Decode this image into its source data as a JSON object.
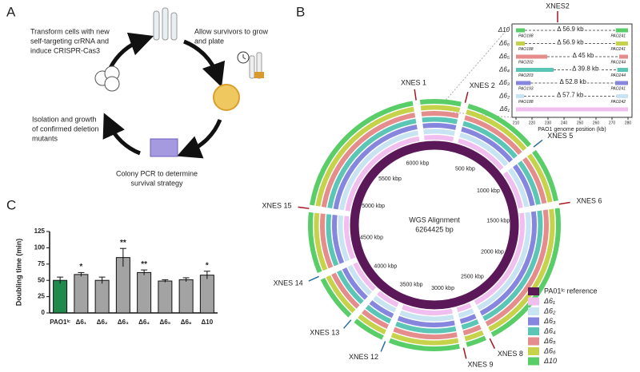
{
  "panel_a": {
    "label": "A",
    "steps": [
      [
        "Transform cells with new",
        "self-targeting crRNA and",
        "induce CRISPR-Cas3"
      ],
      [
        "Allow survivors to grow",
        "and plate"
      ],
      [
        "Colony PCR to determine",
        "survival strategy"
      ],
      [
        "Isolation and growth",
        "of confirmed deletion",
        "mutants"
      ]
    ]
  },
  "panel_b": {
    "label": "B",
    "center_title": "WGS Alignment",
    "genome_size": {
      "value": 6264425,
      "label": "6264425 bp"
    },
    "kbp_ticks": [
      {
        "value": 500,
        "label": "500 kbp"
      },
      {
        "value": 1000,
        "label": "1000 kbp"
      },
      {
        "value": 1500,
        "label": "1500 kbp"
      },
      {
        "value": 2000,
        "label": "2000 kbp"
      },
      {
        "value": 2500,
        "label": "2500 kbp"
      },
      {
        "value": 3000,
        "label": "3000 kbp"
      },
      {
        "value": 3500,
        "label": "3500 kbp"
      },
      {
        "value": 4000,
        "label": "4000 kbp"
      },
      {
        "value": 4500,
        "label": "4500 kbp"
      },
      {
        "value": 5000,
        "label": "5000 kbp"
      },
      {
        "value": 5500,
        "label": "5500 kbp"
      },
      {
        "value": 6000,
        "label": "6000 kbp"
      }
    ],
    "xnes": [
      {
        "label": "XNES 1",
        "position_kbp": 6120,
        "color": "#a31621"
      },
      {
        "label": "XNES 2",
        "position_kbp": 245,
        "color": "#a31621"
      },
      {
        "label": "XNES 5",
        "position_kbp": 900,
        "color": "#2c6e9b"
      },
      {
        "label": "XNES 6",
        "position_kbp": 1400,
        "color": "#a31621"
      },
      {
        "label": "XNES 8",
        "position_kbp": 2680,
        "color": "#a31621"
      },
      {
        "label": "XNES 9",
        "position_kbp": 2900,
        "color": "#a31621"
      },
      {
        "label": "XNES 12",
        "position_kbp": 3530,
        "color": "#2c6e9b"
      },
      {
        "label": "XNES 13",
        "position_kbp": 3850,
        "color": "#2c6e9b"
      },
      {
        "label": "XNES 14",
        "position_kbp": 4280,
        "color": "#2c6e9b"
      },
      {
        "label": "XNES 15",
        "position_kbp": 4830,
        "color": "#a31621"
      }
    ],
    "legend": {
      "position": "lower right",
      "series": [
        {
          "name": "PA01ᴵᶜ reference",
          "color": "#5b1859"
        },
        {
          "name": "Δ6₁",
          "color": "#f0bff0"
        },
        {
          "name": "Δ6₂",
          "color": "#c8e4f2"
        },
        {
          "name": "Δ6₃",
          "color": "#8686df"
        },
        {
          "name": "Δ6₄",
          "color": "#5cc6b6"
        },
        {
          "name": "Δ6₅",
          "color": "#e58c8c"
        },
        {
          "name": "Δ6₆",
          "color": "#c6d34a"
        },
        {
          "name": "Δ10",
          "color": "#58cd68"
        }
      ]
    },
    "inset": {
      "title": "XNES2",
      "xlabel": "PAO1 genome position (kb)",
      "xlim": [
        210,
        280
      ],
      "xticks": [
        210,
        220,
        230,
        240,
        250,
        260,
        270,
        280
      ],
      "rows": [
        {
          "name": "Δ10",
          "color": "#58cd68",
          "deletion_label": "Δ 56.9 kb",
          "deletion": [
            215.5,
            272.4
          ],
          "left_gene": "PAO188",
          "right_gene": "PAO241"
        },
        {
          "name": "Δ6₆",
          "color": "#c6d34a",
          "deletion_label": "Δ 56.9 kb",
          "deletion": [
            215.5,
            272.4
          ],
          "left_gene": "PAO188",
          "right_gene": "PAO241"
        },
        {
          "name": "Δ6₅",
          "color": "#e58c8c",
          "deletion_label": "Δ 45 kb",
          "deletion": [
            229.5,
            274.5
          ],
          "left_gene": "PAO202",
          "right_gene": "PAO244"
        },
        {
          "name": "Δ6₄",
          "color": "#5cc6b6",
          "deletion_label": "Δ 39.8 kb",
          "deletion": [
            233.5,
            273.3
          ],
          "left_gene": "PAO203",
          "right_gene": "PAO244"
        },
        {
          "name": "Δ6₃",
          "color": "#8686df",
          "deletion_label": "Δ 52.8 kb",
          "deletion": [
            219.2,
            272
          ],
          "left_gene": "PAO193",
          "right_gene": "PAO241"
        },
        {
          "name": "Δ6₂",
          "color": "#c8e4f2",
          "deletion_label": "Δ 57.7 kb",
          "deletion": [
            215,
            272.7
          ],
          "left_gene": "PAO188",
          "right_gene": "PAO242"
        },
        {
          "name": "Δ6₁",
          "color": "#f0bff0"
        }
      ]
    }
  },
  "chart_data": {
    "type": "bar",
    "label": "C",
    "ylabel": "Doubling time (min)",
    "categories": [
      "PAO1ᴵᶜ",
      "Δ6₁",
      "Δ6₂",
      "Δ6₃",
      "Δ6₄",
      "Δ6₅",
      "Δ6₆",
      "Δ10"
    ],
    "values": [
      50,
      59,
      50,
      85,
      62,
      49,
      51,
      58
    ],
    "errors": [
      5,
      3,
      5,
      14,
      4,
      2,
      3,
      6
    ],
    "significance": [
      null,
      "*",
      null,
      "**",
      "**",
      null,
      null,
      "*"
    ],
    "colors": [
      "#1f8a4c",
      "#a3a3a3",
      "#a3a3a3",
      "#a3a3a3",
      "#a3a3a3",
      "#a3a3a3",
      "#a3a3a3",
      "#a3a3a3"
    ],
    "ylim": [
      0,
      125
    ],
    "yticks": [
      0,
      25,
      50,
      75,
      100,
      125
    ]
  }
}
